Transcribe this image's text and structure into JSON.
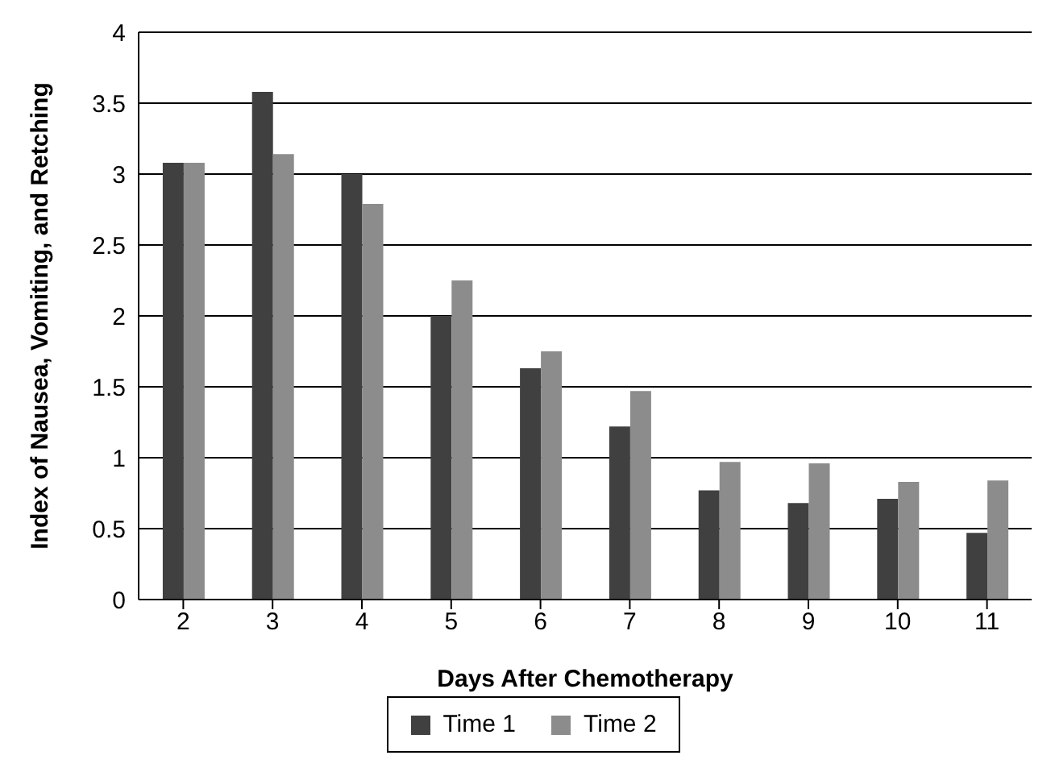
{
  "chart_data": {
    "type": "bar",
    "xlabel": "Days After Chemotherapy",
    "ylabel": "Index of Nausea, Vomiting, and Retching",
    "categories": [
      "2",
      "3",
      "4",
      "5",
      "6",
      "7",
      "8",
      "9",
      "10",
      "11"
    ],
    "series": [
      {
        "name": "Time 1",
        "color": "#404040",
        "values": [
          3.08,
          3.58,
          3.0,
          2.0,
          1.63,
          1.22,
          0.77,
          0.68,
          0.71,
          0.47
        ]
      },
      {
        "name": "Time 2",
        "color": "#8c8c8c",
        "values": [
          3.08,
          3.14,
          2.79,
          2.25,
          1.75,
          1.47,
          0.97,
          0.96,
          0.83,
          0.84
        ]
      }
    ],
    "ylim": [
      0,
      4
    ],
    "yticks": [
      0,
      0.5,
      1,
      1.5,
      2,
      2.5,
      3,
      3.5,
      4
    ],
    "grid": "y",
    "legend": "bottom"
  }
}
